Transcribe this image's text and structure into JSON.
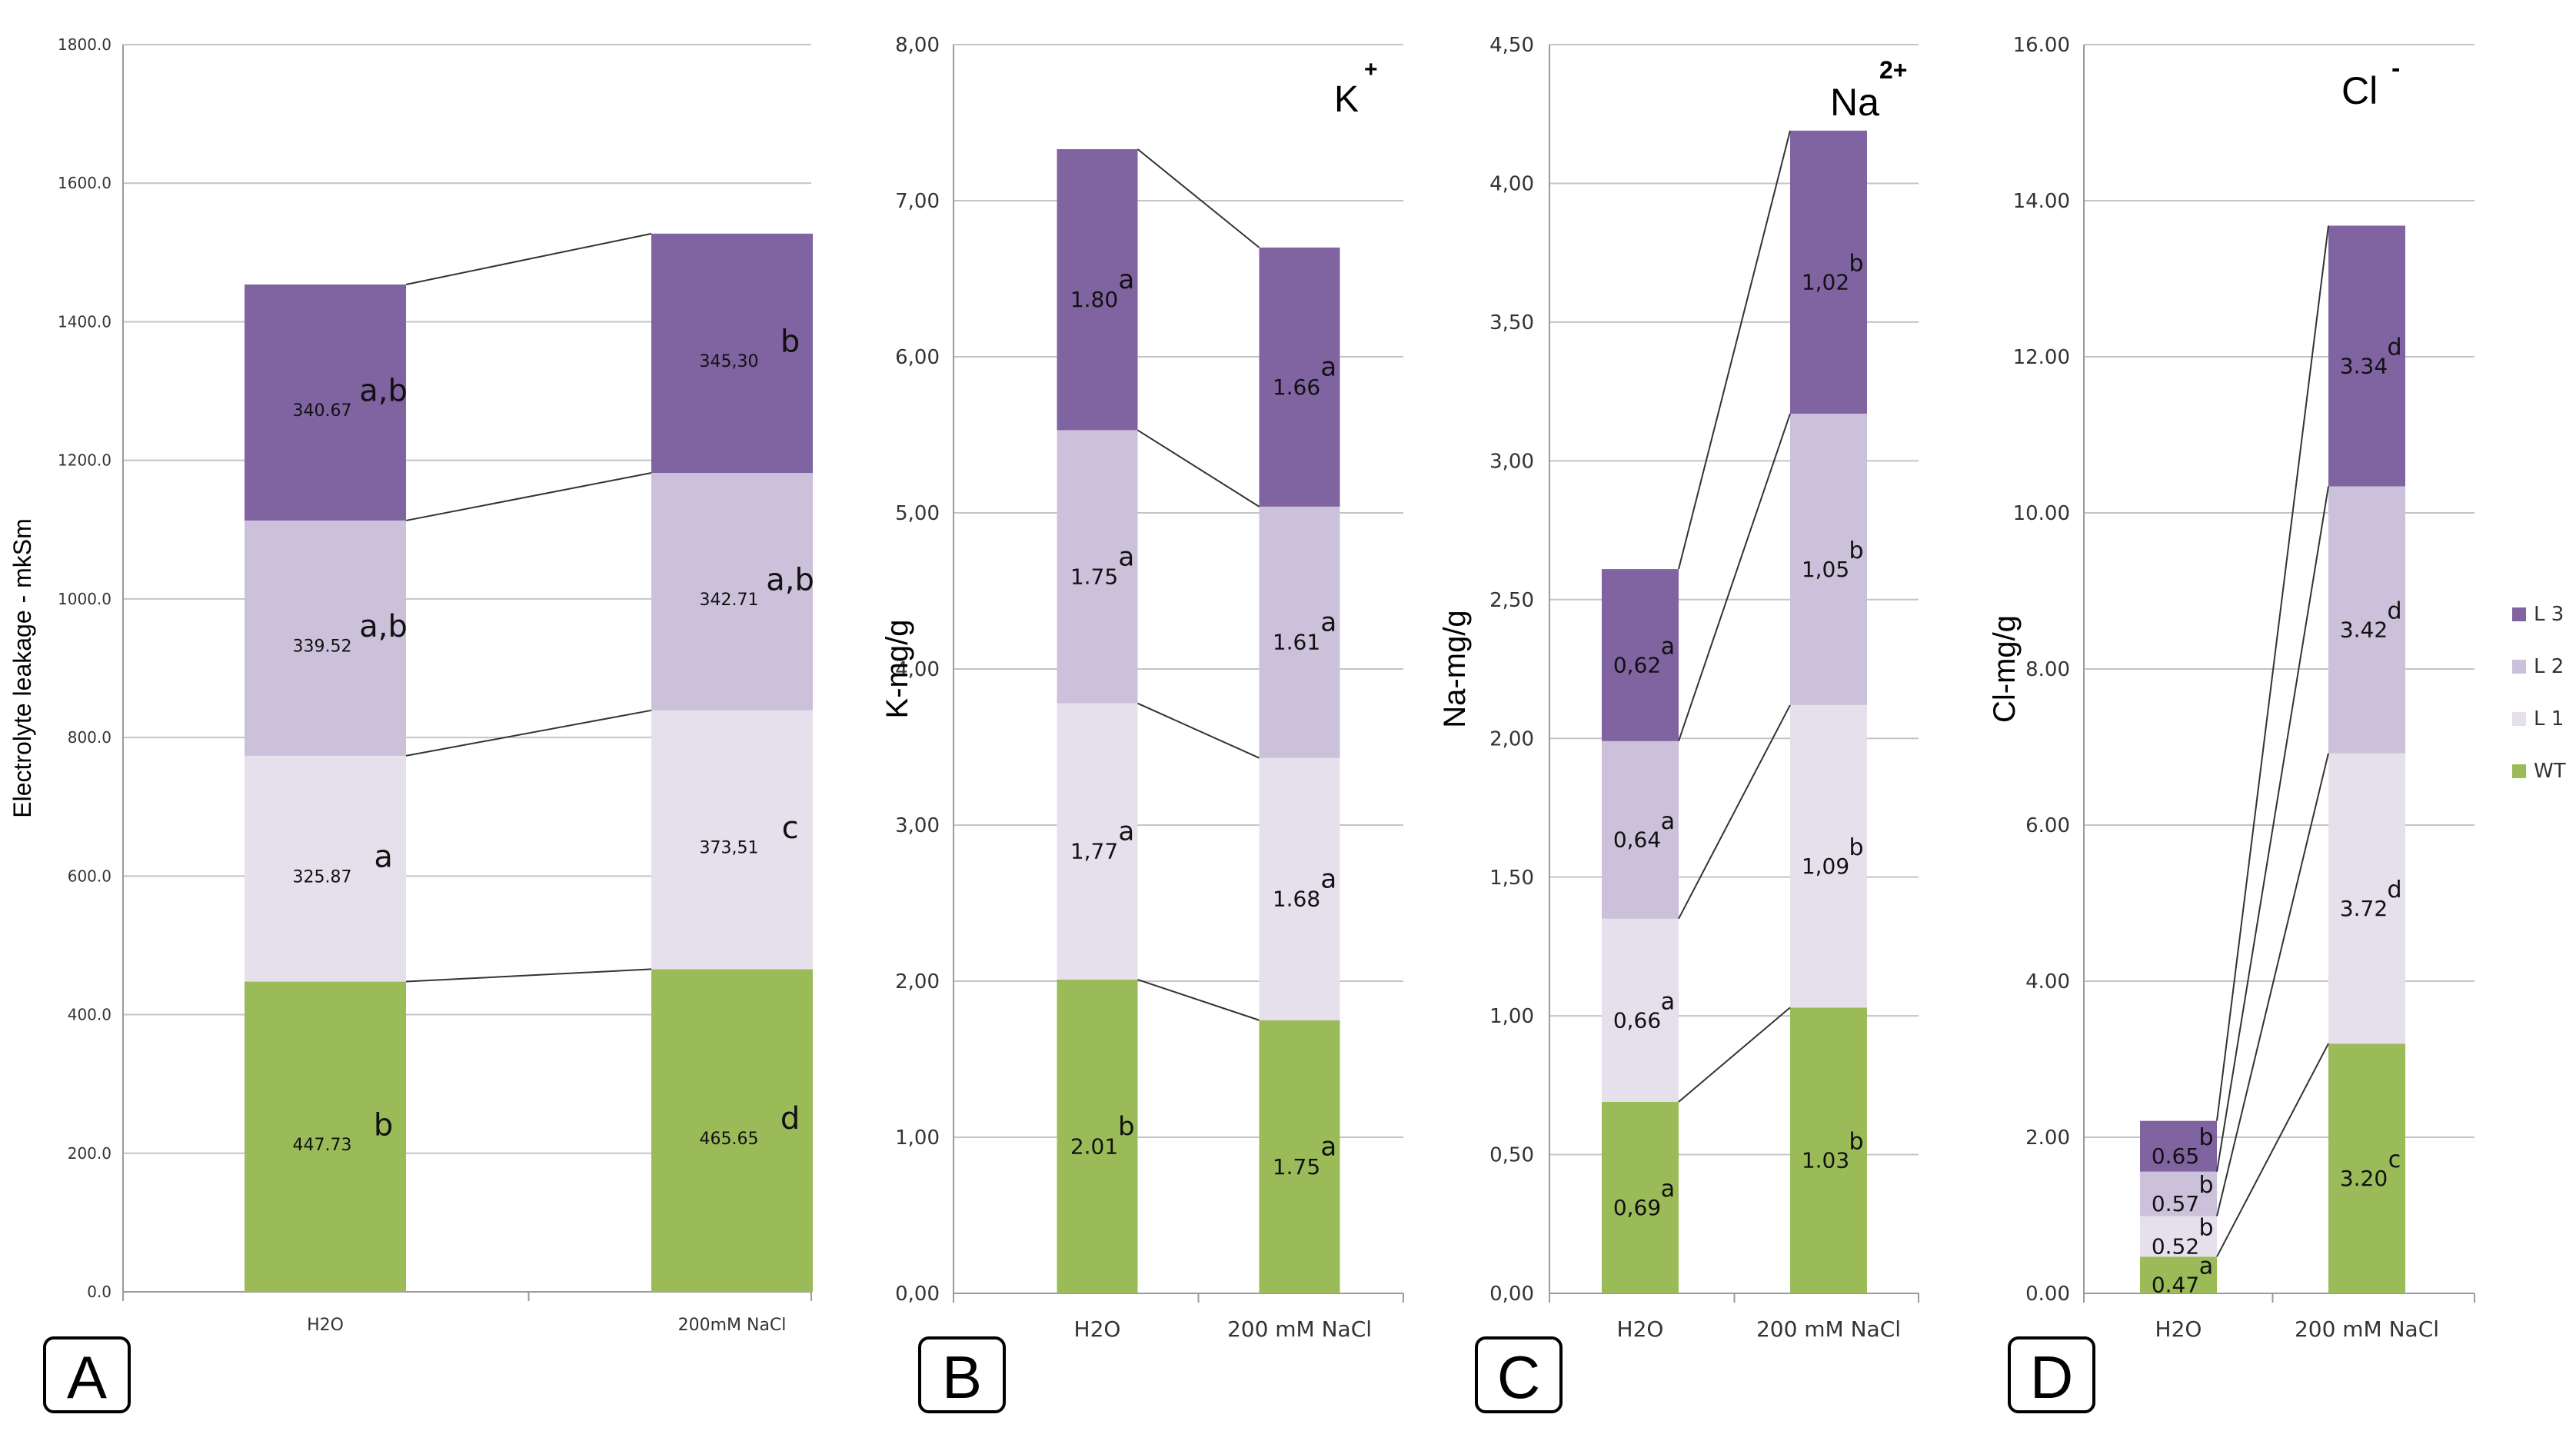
{
  "colors": {
    "WT": "#9bbb59",
    "L 1": "#e6e0ec",
    "L 2": "#ccc1da",
    "L 3": "#8064a2"
  },
  "legend": [
    "L 3",
    "L 2",
    "L 1",
    "WT"
  ],
  "chart_data": [
    {
      "panel": "A",
      "type": "bar",
      "stacked": true,
      "ylabel": "Electrolyte leakage - mkSm",
      "ion": "",
      "ion_sup": "",
      "categories": [
        "H2O",
        "200mM NaCl"
      ],
      "ylim": [
        0,
        1800
      ],
      "yticks": [
        "0.0",
        "200.0",
        "400.0",
        "600.0",
        "800.0",
        "1000.0",
        "1200.0",
        "1400.0",
        "1600.0",
        "1800.0"
      ],
      "series": [
        {
          "name": "WT",
          "values": [
            447.73,
            465.65
          ],
          "value_labels": [
            "447.73",
            "465.65"
          ],
          "letters": [
            "b",
            "d"
          ]
        },
        {
          "name": "L 1",
          "values": [
            325.87,
            373.51
          ],
          "value_labels": [
            "325.87",
            "373,51"
          ],
          "letters": [
            "a",
            "c"
          ]
        },
        {
          "name": "L 2",
          "values": [
            339.52,
            342.71
          ],
          "value_labels": [
            "339.52",
            "342.71"
          ],
          "letters": [
            "a,b",
            "a,b"
          ]
        },
        {
          "name": "L 3",
          "values": [
            340.67,
            345.3
          ],
          "value_labels": [
            "340.67",
            "345,30"
          ],
          "letters": [
            "a,b",
            "b"
          ]
        }
      ]
    },
    {
      "panel": "B",
      "type": "bar",
      "stacked": true,
      "ylabel": "K-mg/g",
      "ion": "K",
      "ion_sup": "+",
      "categories": [
        "H2O",
        "200 mM NaCl"
      ],
      "ylim": [
        0,
        8
      ],
      "yticks": [
        "0,00",
        "1,00",
        "2,00",
        "3,00",
        "4,00",
        "5,00",
        "6,00",
        "7,00",
        "8,00"
      ],
      "series": [
        {
          "name": "WT",
          "values": [
            2.01,
            1.75
          ],
          "value_labels": [
            "2.01",
            "1.75"
          ],
          "letters": [
            "b",
            "a"
          ]
        },
        {
          "name": "L 1",
          "values": [
            1.77,
            1.68
          ],
          "value_labels": [
            "1,77",
            "1.68"
          ],
          "letters": [
            "a",
            "a"
          ]
        },
        {
          "name": "L 2",
          "values": [
            1.75,
            1.61
          ],
          "value_labels": [
            "1.75",
            "1.61"
          ],
          "letters": [
            "a",
            "a"
          ]
        },
        {
          "name": "L 3",
          "values": [
            1.8,
            1.66
          ],
          "value_labels": [
            "1.80",
            "1.66"
          ],
          "letters": [
            "a",
            "a"
          ]
        }
      ]
    },
    {
      "panel": "C",
      "type": "bar",
      "stacked": true,
      "ylabel": "Na-mg/g",
      "ion": "Na",
      "ion_sup": "2+",
      "categories": [
        "H2O",
        "200 mM NaCl"
      ],
      "ylim": [
        0,
        4.5
      ],
      "yticks": [
        "0,00",
        "0,50",
        "1,00",
        "1,50",
        "2,00",
        "2,50",
        "3,00",
        "3,50",
        "4,00",
        "4,50"
      ],
      "series": [
        {
          "name": "WT",
          "values": [
            0.69,
            1.03
          ],
          "value_labels": [
            "0,69",
            "1.03"
          ],
          "letters": [
            "a",
            "b"
          ]
        },
        {
          "name": "L 1",
          "values": [
            0.66,
            1.09
          ],
          "value_labels": [
            "0,66",
            "1,09"
          ],
          "letters": [
            "a",
            "b"
          ]
        },
        {
          "name": "L 2",
          "values": [
            0.64,
            1.05
          ],
          "value_labels": [
            "0,64",
            "1,05"
          ],
          "letters": [
            "a",
            "b"
          ]
        },
        {
          "name": "L 3",
          "values": [
            0.62,
            1.02
          ],
          "value_labels": [
            "0,62",
            "1,02"
          ],
          "letters": [
            "a",
            "b"
          ]
        }
      ]
    },
    {
      "panel": "D",
      "type": "bar",
      "stacked": true,
      "ylabel": "Cl-mg/g",
      "ion": "Cl",
      "ion_sup": "-",
      "categories": [
        "H2O",
        "200 mM NaCl"
      ],
      "ylim": [
        0,
        16
      ],
      "yticks": [
        "0.00",
        "2.00",
        "4.00",
        "6.00",
        "8.00",
        "10.00",
        "12.00",
        "14.00",
        "16.00"
      ],
      "series": [
        {
          "name": "WT",
          "values": [
            0.47,
            3.2
          ],
          "value_labels": [
            "0.47",
            "3.20"
          ],
          "letters": [
            "a",
            "c"
          ]
        },
        {
          "name": "L 1",
          "values": [
            0.52,
            3.72
          ],
          "value_labels": [
            "0.52",
            "3.72"
          ],
          "letters": [
            "b",
            "d"
          ]
        },
        {
          "name": "L 2",
          "values": [
            0.57,
            3.42
          ],
          "value_labels": [
            "0.57",
            "3.42"
          ],
          "letters": [
            "b",
            "d"
          ]
        },
        {
          "name": "L 3",
          "values": [
            0.65,
            3.34
          ],
          "value_labels": [
            "0.65",
            "3.34"
          ],
          "letters": [
            "b",
            "d"
          ]
        }
      ]
    }
  ]
}
